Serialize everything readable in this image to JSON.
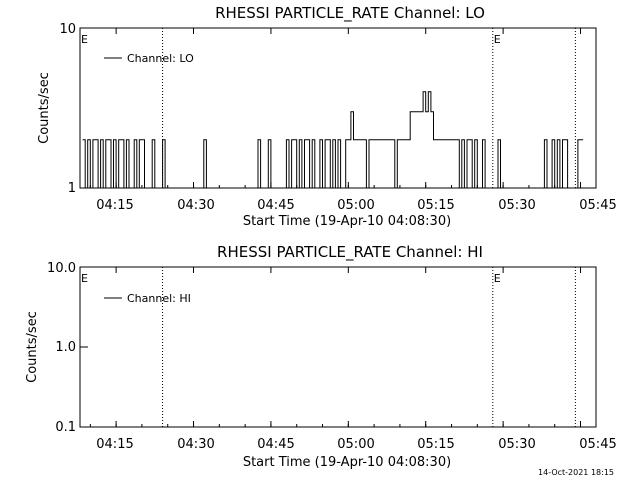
{
  "chart_data": [
    {
      "type": "line",
      "title": "RHESSI PARTICLE_RATE Channel: LO",
      "xlabel": "Start Time (19-Apr-10 04:08:30)",
      "ylabel": "Counts/sec",
      "xlim": [
        "04:08",
        "05:48"
      ],
      "ylim": [
        1,
        10
      ],
      "y_scale": "log",
      "x_ticks": [
        "04:15",
        "04:30",
        "04:45",
        "05:00",
        "05:15",
        "05:30",
        "05:45"
      ],
      "y_ticks": [
        "1",
        "10"
      ],
      "legend": {
        "label": "Channel: LO",
        "position": "top-left"
      },
      "markers": [
        {
          "time": "04:08",
          "label": "E",
          "line": false
        },
        {
          "time": "04:24",
          "label": "",
          "line": true
        },
        {
          "time": "05:28",
          "label": "E",
          "line": true
        },
        {
          "time": "05:44",
          "label": "",
          "line": true
        }
      ],
      "series": [
        {
          "name": "Channel: LO",
          "x_minutes_after_0400": [
            8.5,
            9,
            9.5,
            10,
            10.5,
            11,
            11.5,
            12,
            12.5,
            13,
            13.5,
            14,
            14.5,
            15,
            15.5,
            16,
            16.5,
            17,
            17.5,
            18,
            18.5,
            19,
            19.5,
            20,
            20.5,
            21,
            21.5,
            22,
            22.5,
            23,
            23.5,
            24,
            24.5,
            25,
            25.5,
            26,
            26.5,
            27,
            27.5,
            28,
            28.5,
            29,
            29.5,
            30,
            30.5,
            31,
            31.5,
            32,
            32.5,
            33,
            33.5,
            34,
            34.5,
            35,
            35.5,
            36,
            36.5,
            37,
            37.5,
            38,
            38.5,
            39,
            39.5,
            40,
            40.5,
            41,
            41.5,
            42,
            42.5,
            43,
            43.5,
            44,
            44.5,
            45,
            45.5,
            46,
            46.5,
            47,
            47.5,
            48,
            48.5,
            49,
            49.5,
            50,
            50.5,
            51,
            51.5,
            52,
            52.5,
            53,
            53.5,
            54,
            54.5,
            55,
            55.5,
            56,
            56.5,
            57,
            57.5,
            58,
            58.5,
            59,
            59.5,
            60,
            60.5,
            61,
            61.5,
            62,
            62.5,
            63,
            63.5,
            64,
            64.5,
            65,
            65.5,
            66,
            66.5,
            67,
            67.5,
            68,
            68.5,
            69,
            69.5,
            70,
            70.5,
            71,
            71.5,
            72,
            72.5,
            73,
            73.5,
            74,
            74.5,
            75,
            75.5,
            76,
            76.5,
            77,
            77.5,
            78,
            78.5,
            79,
            79.5,
            80,
            80.5,
            81,
            81.5,
            82,
            82.5,
            83,
            83.5,
            84,
            84.5,
            85,
            85.5,
            86,
            86.5,
            87,
            87.5,
            88,
            88.5,
            89,
            89.5,
            90,
            90.5,
            91,
            91.5,
            92,
            92.5,
            93,
            93.5,
            94,
            94.5,
            95,
            95.5,
            96,
            96.5,
            97,
            97.5,
            98,
            98.5,
            99,
            99.5,
            100,
            100.5,
            101,
            101.5,
            102,
            102.5,
            103,
            103.5,
            104,
            104.5,
            105,
            105.5,
            106
          ],
          "y": [
            2,
            1,
            2,
            1,
            2,
            2,
            1,
            2,
            1,
            2,
            2,
            1,
            2,
            1,
            2,
            2,
            1,
            2,
            1,
            1,
            2,
            1,
            2,
            2,
            1,
            1,
            1,
            2,
            1,
            1,
            1,
            2,
            1,
            1,
            1,
            1,
            1,
            1,
            1,
            1,
            1,
            1,
            1,
            1,
            1,
            1,
            1,
            2,
            1,
            1,
            1,
            1,
            1,
            1,
            1,
            1,
            1,
            1,
            1,
            1,
            1,
            1,
            1,
            1,
            1,
            1,
            1,
            1,
            2,
            1,
            1,
            1,
            2,
            1,
            1,
            1,
            1,
            1,
            1,
            2,
            1,
            2,
            2,
            1,
            2,
            1,
            2,
            2,
            1,
            2,
            1,
            1,
            2,
            1,
            2,
            2,
            1,
            2,
            1,
            2,
            1,
            1,
            2,
            2,
            3,
            2,
            2,
            2,
            2,
            2,
            1,
            2,
            2,
            2,
            2,
            2,
            2,
            2,
            2,
            2,
            2,
            1,
            2,
            2,
            2,
            2,
            2,
            3,
            3,
            3,
            3,
            3,
            4,
            3,
            4,
            3,
            2,
            2,
            2,
            2,
            2,
            2,
            2,
            2,
            2,
            2,
            1,
            2,
            1,
            2,
            2,
            1,
            2,
            1,
            1,
            2,
            1,
            1,
            1,
            1,
            1,
            2,
            1,
            1,
            1,
            1,
            1,
            1,
            1,
            1,
            1,
            1,
            1,
            1,
            1,
            1,
            1,
            1,
            1,
            2,
            1,
            1,
            2,
            1,
            2,
            1,
            2,
            2,
            1,
            1,
            1,
            1,
            2,
            2
          ]
        }
      ]
    },
    {
      "type": "line",
      "title": "RHESSI PARTICLE_RATE Channel: HI",
      "xlabel": "Start Time (19-Apr-10 04:08:30)",
      "ylabel": "Counts/sec",
      "xlim": [
        "04:08",
        "05:48"
      ],
      "ylim": [
        0.1,
        10.0
      ],
      "y_scale": "log",
      "x_ticks": [
        "04:15",
        "04:30",
        "04:45",
        "05:00",
        "05:15",
        "05:30",
        "05:45"
      ],
      "y_ticks": [
        "0.1",
        "1.0",
        "10.0"
      ],
      "legend": {
        "label": "Channel: HI",
        "position": "top-left"
      },
      "markers": [
        {
          "time": "04:08",
          "label": "E",
          "line": false
        },
        {
          "time": "04:24",
          "label": "",
          "line": true
        },
        {
          "time": "05:28",
          "label": "E",
          "line": true
        },
        {
          "time": "05:44",
          "label": "",
          "line": true
        }
      ],
      "series": [
        {
          "name": "Channel: HI",
          "x_minutes_after_0400": [],
          "y": []
        }
      ]
    }
  ],
  "footer": {
    "timestamp": "14-Oct-2021 18:15"
  }
}
